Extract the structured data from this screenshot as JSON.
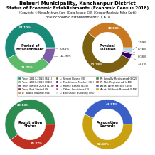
{
  "title": "Belauri Municipality, Kanchanpur District",
  "subtitle": "Status of Economic Establishments (Economic Census 2018)",
  "annotations": [
    "(Copyright © NepalArchives.Com | Data Source: CBS | Creator/Analysis: Milan Karki)",
    "Total Economic Establishments: 1,678"
  ],
  "legend": "center",
  "chart_data": [
    {
      "type": "pie",
      "title": "Period of\nEstablishment",
      "categories": [
        "Year: 2013-2018 (611)",
        "Year: 2003-2013 (348)",
        "Year: Before 2003 (118)",
        "Year: Not Stated (9)"
      ],
      "values": [
        57.1,
        31.75,
        10.26,
        0.84
      ],
      "value_labels": [
        "57.10%",
        "31.75%",
        "10.26%",
        "0.84%"
      ],
      "colors": [
        "#1a8a78",
        "#5dba6a",
        "#7b5ea7",
        "#8b3030"
      ]
    },
    {
      "type": "pie",
      "title": "Physical\nLocation",
      "categories": [
        "L: Brand Based (554)",
        "L: Street Based (3)",
        "L: Traditional Market (32)",
        "L: Home Based (419)",
        "L: Other Locations (2)",
        "L: Exclusive Building (91)"
      ],
      "values": [
        38.8,
        51.78,
        3.47,
        0.18,
        0.78,
        2.99
      ],
      "value_labels": [
        "38.80%",
        "51.78%",
        "3.47%",
        "0.18%",
        "0.78%",
        "2.99%"
      ],
      "colors": [
        "#c87820",
        "#7a6010",
        "#2b006b",
        "#6a0070",
        "#cc5588",
        "#add8e6"
      ]
    },
    {
      "type": "pie",
      "title": "Registration\nStatus",
      "categories": [
        "R: Legally Registered (802)",
        "R: Not Registered (418)"
      ],
      "values": [
        60.83,
        39.27
      ],
      "value_labels": [
        "60.83%",
        "39.27%"
      ],
      "colors": [
        "#2e8b50",
        "#c03020"
      ]
    },
    {
      "type": "pie",
      "title": "Accounting\nRecords",
      "categories": [
        "Acct: With Record (458)",
        "Acct: Without Record (549)"
      ],
      "values": [
        43.51,
        56.68
      ],
      "value_labels": [
        "43.51%",
        "56.68%"
      ],
      "colors": [
        "#3a60c8",
        "#c8a010"
      ]
    }
  ]
}
